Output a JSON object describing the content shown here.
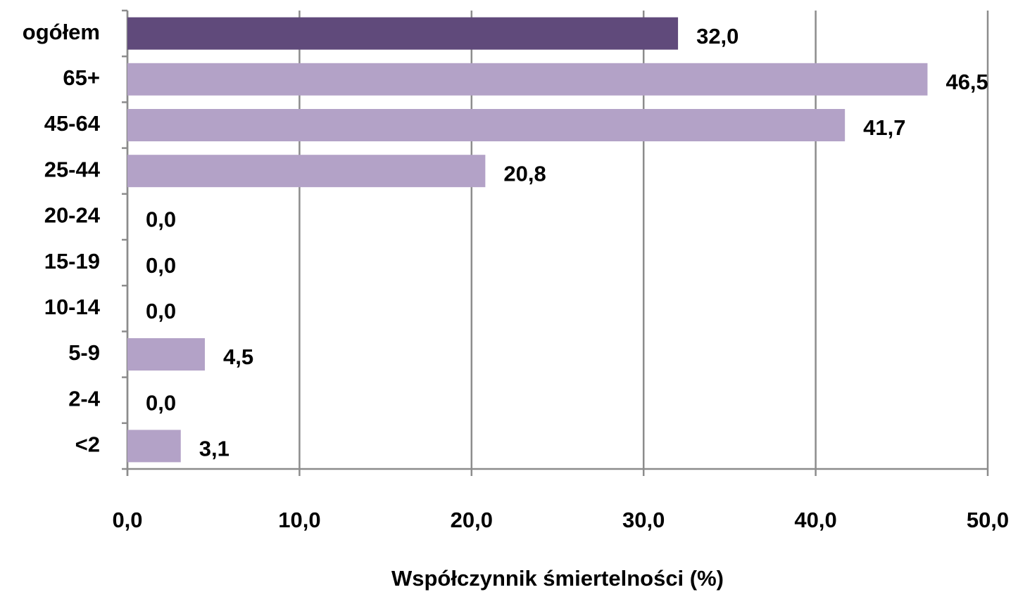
{
  "chart_data": {
    "type": "bar",
    "orientation": "horizontal",
    "categories": [
      "ogółem",
      "65+",
      "45-64",
      "25-44",
      "20-24",
      "15-19",
      "10-14",
      "5-9",
      "2-4",
      "<2"
    ],
    "values": [
      32.0,
      46.5,
      41.7,
      20.8,
      0.0,
      0.0,
      0.0,
      4.5,
      0.0,
      3.1
    ],
    "value_labels": [
      "32,0",
      "46,5",
      "41,7",
      "20,8",
      "0,0",
      "0,0",
      "0,0",
      "4,5",
      "0,0",
      "3,1"
    ],
    "colors": [
      "#604a7b",
      "#b3a2c7",
      "#b3a2c7",
      "#b3a2c7",
      "#b3a2c7",
      "#b3a2c7",
      "#b3a2c7",
      "#b3a2c7",
      "#b3a2c7",
      "#b3a2c7"
    ],
    "xlim": [
      0,
      50
    ],
    "xticks": [
      {
        "value": 0,
        "label": "0,0"
      },
      {
        "value": 10,
        "label": "10,0"
      },
      {
        "value": 20,
        "label": "20,0"
      },
      {
        "value": 30,
        "label": "30,0"
      },
      {
        "value": 40,
        "label": "40,0"
      },
      {
        "value": 50,
        "label": "50,0"
      }
    ],
    "xlabel": "Współczynnik śmiertelności (%)",
    "grid": true
  }
}
